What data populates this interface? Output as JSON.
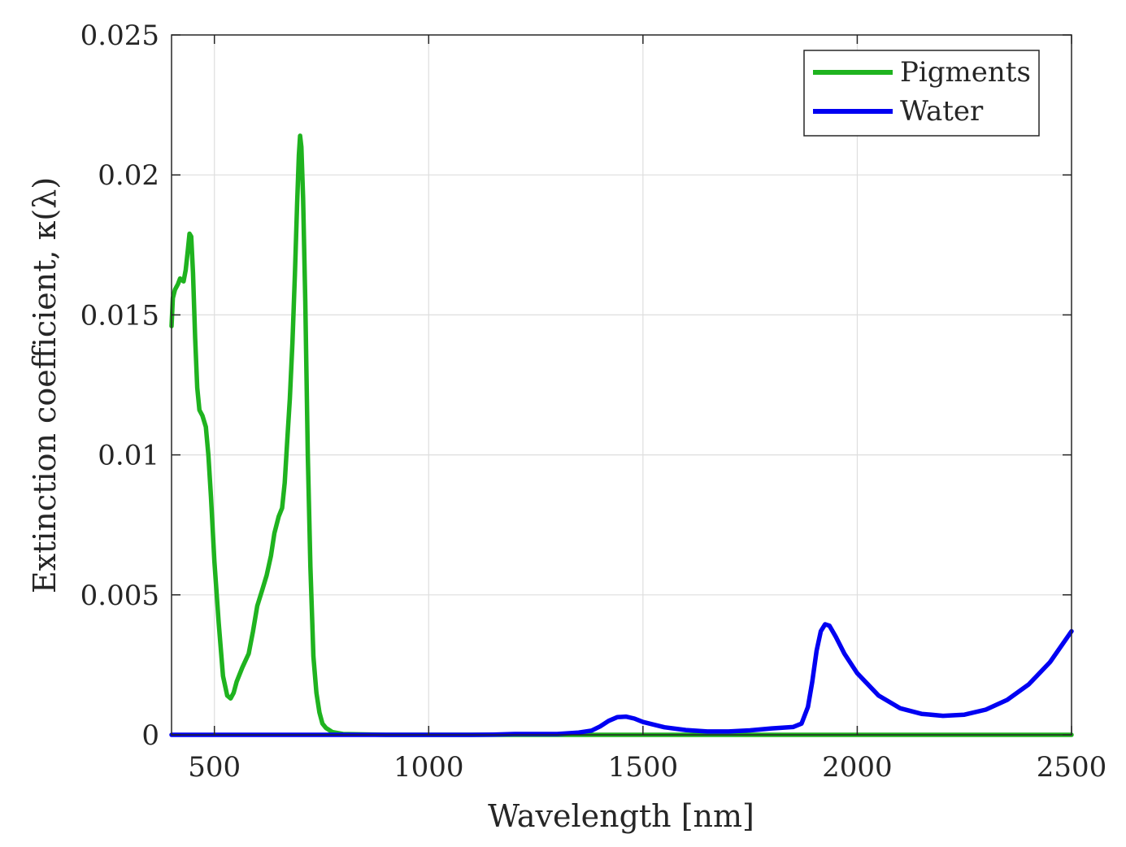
{
  "chart_data": {
    "type": "line",
    "title": "",
    "xlabel": "Wavelength [nm]",
    "ylabel": "Extinction coefficient, κ(λ)",
    "xlim": [
      400,
      2500
    ],
    "ylim": [
      0,
      0.025
    ],
    "x_ticks": [
      500,
      1000,
      1500,
      2000,
      2500
    ],
    "x_tick_labels": [
      "500",
      "1000",
      "1500",
      "2000",
      "2500"
    ],
    "y_ticks": [
      0,
      0.005,
      0.01,
      0.015,
      0.02,
      0.025
    ],
    "y_tick_labels": [
      "0",
      "0.005",
      "0.01",
      "0.015",
      "0.02",
      "0.025"
    ],
    "grid": true,
    "legend_position": "top-right",
    "series": [
      {
        "name": "Pigments",
        "color": "#1fb31f",
        "points": [
          [
            400,
            0.0146
          ],
          [
            403,
            0.0156
          ],
          [
            408,
            0.0159
          ],
          [
            415,
            0.0161
          ],
          [
            420,
            0.0163
          ],
          [
            428,
            0.0162
          ],
          [
            433,
            0.0166
          ],
          [
            438,
            0.0173
          ],
          [
            442,
            0.0179
          ],
          [
            446,
            0.0178
          ],
          [
            450,
            0.0165
          ],
          [
            455,
            0.0142
          ],
          [
            460,
            0.0124
          ],
          [
            465,
            0.0116
          ],
          [
            472,
            0.0114
          ],
          [
            480,
            0.011
          ],
          [
            486,
            0.01
          ],
          [
            492,
            0.0085
          ],
          [
            500,
            0.0062
          ],
          [
            510,
            0.004
          ],
          [
            520,
            0.0021
          ],
          [
            530,
            0.0014
          ],
          [
            538,
            0.0013
          ],
          [
            545,
            0.0015
          ],
          [
            552,
            0.0019
          ],
          [
            565,
            0.0024
          ],
          [
            580,
            0.0029
          ],
          [
            590,
            0.0037
          ],
          [
            600,
            0.0046
          ],
          [
            612,
            0.0052
          ],
          [
            622,
            0.0057
          ],
          [
            632,
            0.0064
          ],
          [
            640,
            0.0072
          ],
          [
            650,
            0.0078
          ],
          [
            658,
            0.0081
          ],
          [
            664,
            0.009
          ],
          [
            670,
            0.0105
          ],
          [
            676,
            0.012
          ],
          [
            682,
            0.014
          ],
          [
            688,
            0.0165
          ],
          [
            693,
            0.019
          ],
          [
            697,
            0.0207
          ],
          [
            700,
            0.0214
          ],
          [
            703,
            0.021
          ],
          [
            707,
            0.0192
          ],
          [
            712,
            0.0155
          ],
          [
            718,
            0.01
          ],
          [
            724,
            0.006
          ],
          [
            731,
            0.0028
          ],
          [
            738,
            0.0015
          ],
          [
            745,
            0.0008
          ],
          [
            752,
            0.0004
          ],
          [
            760,
            0.00025
          ],
          [
            775,
            0.0001
          ],
          [
            800,
            3e-05
          ],
          [
            900,
            0.0
          ],
          [
            1500,
            0.0
          ],
          [
            2500,
            0.0
          ]
        ]
      },
      {
        "name": "Water",
        "color": "#0000f2",
        "points": [
          [
            400,
            0.0
          ],
          [
            800,
            0.0
          ],
          [
            1100,
            0.0
          ],
          [
            1150,
            1e-05
          ],
          [
            1200,
            3e-05
          ],
          [
            1300,
            3e-05
          ],
          [
            1350,
            8e-05
          ],
          [
            1380,
            0.00015
          ],
          [
            1400,
            0.0003
          ],
          [
            1420,
            0.0005
          ],
          [
            1440,
            0.00063
          ],
          [
            1460,
            0.00065
          ],
          [
            1480,
            0.00058
          ],
          [
            1500,
            0.00046
          ],
          [
            1550,
            0.00027
          ],
          [
            1600,
            0.00017
          ],
          [
            1650,
            0.00012
          ],
          [
            1700,
            0.00012
          ],
          [
            1750,
            0.00016
          ],
          [
            1800,
            0.00023
          ],
          [
            1850,
            0.00028
          ],
          [
            1870,
            0.0004
          ],
          [
            1885,
            0.001
          ],
          [
            1895,
            0.0019
          ],
          [
            1905,
            0.003
          ],
          [
            1915,
            0.0037
          ],
          [
            1925,
            0.00395
          ],
          [
            1935,
            0.0039
          ],
          [
            1950,
            0.0035
          ],
          [
            1970,
            0.0029
          ],
          [
            2000,
            0.0022
          ],
          [
            2050,
            0.0014
          ],
          [
            2100,
            0.00095
          ],
          [
            2150,
            0.00075
          ],
          [
            2200,
            0.00068
          ],
          [
            2250,
            0.00072
          ],
          [
            2300,
            0.0009
          ],
          [
            2350,
            0.00125
          ],
          [
            2400,
            0.0018
          ],
          [
            2450,
            0.0026
          ],
          [
            2500,
            0.0037
          ]
        ]
      }
    ]
  }
}
